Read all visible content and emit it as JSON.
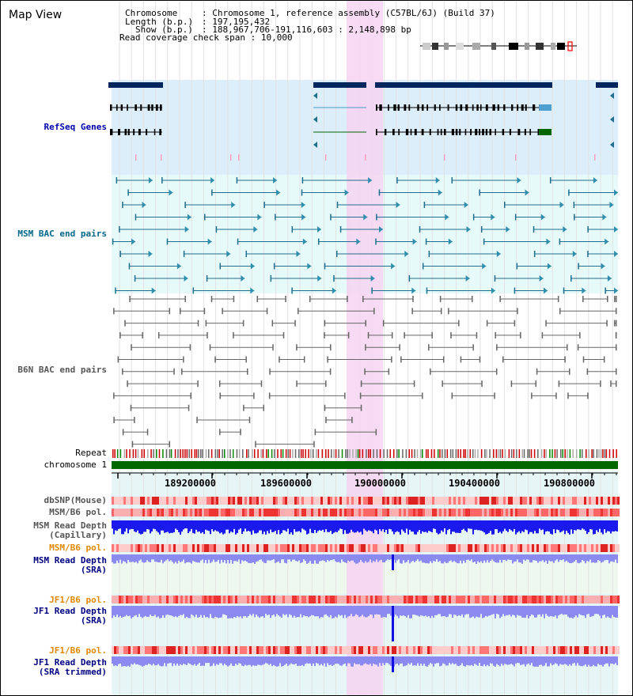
{
  "title": "Map View",
  "info": {
    "chromosome_key": "Chromosome",
    "chromosome_val": "Chromosome 1, reference assembly (C57BL/6J) (Build 37)",
    "length_key": "Length (b.p.)",
    "length_val": "197,195,432",
    "show_key": "Show (b.p.)",
    "show_val": "188,967,706-191,116,603 : 2,148,898 bp",
    "coverage_key": "Read coverage check span",
    "coverage_val": "10,000"
  },
  "tracks": {
    "refseq": "RefSeq Genes",
    "msm_bac": "MSM BAC end pairs",
    "b6n_bac": "B6N BAC end pairs",
    "repeat": "Repeat",
    "chromosome": "chromosome 1",
    "dbsnp": "dbSNP(Mouse)",
    "msm_b6_pol": "MSM/B6 pol.",
    "msm_read_depth_cap_1": "MSM Read Depth",
    "msm_read_depth_cap_2": "(Capillary)",
    "msm_b6_pol_2": "MSM/B6 pol.",
    "msm_read_depth_sra_1": "MSM Read Depth",
    "msm_read_depth_sra_2": "(SRA)",
    "jf1_b6_pol": "JF1/B6 pol.",
    "jf1_read_depth_sra_1": "JF1 Read Depth",
    "jf1_read_depth_sra_2": "(SRA)",
    "jf1_b6_pol_2": "JF1/B6 pol.",
    "jf1_read_depth_trim_1": "JF1 Read Depth",
    "jf1_read_depth_trim_2": "(SRA trimmed)"
  },
  "axis": {
    "ticks": [
      "189200000",
      "189600000",
      "190000000",
      "190400000",
      "190800000"
    ]
  },
  "colors": {
    "refseq_bg": "#dbeef9",
    "msm_bg": "#e7fafa",
    "highlight": "#f6d4f1",
    "chrom_bar": "#006600",
    "gene_dark": "#00265e",
    "gene_green": "#006600",
    "msm_line": "#1f6e8e",
    "b6n_line": "#555555",
    "depth_blue": "#1010e0",
    "depth_light": "#8a8af0"
  }
}
